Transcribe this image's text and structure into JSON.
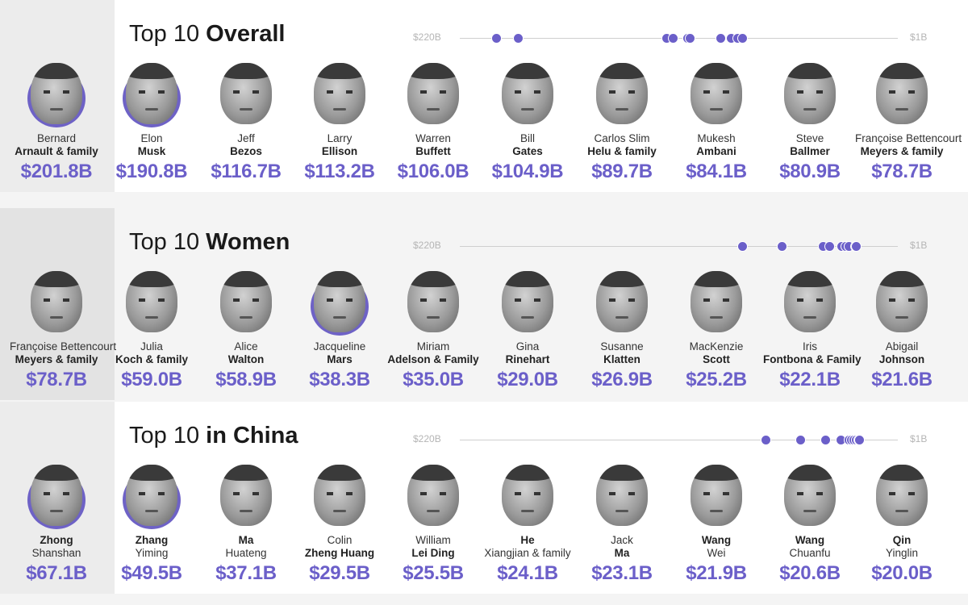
{
  "colors": {
    "accent": "#6b5fc9",
    "ring": "#6e62c6"
  },
  "scale_labels": {
    "high": "$220B",
    "low": "$1B"
  },
  "sections": [
    {
      "title_light": "Top 10 ",
      "title_bold": "Overall",
      "lead": {
        "line1": "Bernard",
        "line2": "Arnault & family",
        "worth": "$201.8B",
        "line1_bold": false
      },
      "people": [
        {
          "line1": "Elon",
          "line2": "Musk",
          "worth": "$190.8B",
          "line1_bold": false
        },
        {
          "line1": "Jeff",
          "line2": "Bezos",
          "worth": "$116.7B",
          "line1_bold": false
        },
        {
          "line1": "Larry",
          "line2": "Ellison",
          "worth": "$113.2B",
          "line1_bold": false
        },
        {
          "line1": "Warren",
          "line2": "Buffett",
          "worth": "$106.0B",
          "line1_bold": false
        },
        {
          "line1": "Bill",
          "line2": "Gates",
          "worth": "$104.9B",
          "line1_bold": false
        },
        {
          "line1": "Carlos Slim",
          "line2": "Helu & family",
          "worth": "$89.7B",
          "line1_bold": false
        },
        {
          "line1": "Mukesh",
          "line2": "Ambani",
          "worth": "$84.1B",
          "line1_bold": false
        },
        {
          "line1": "Steve",
          "line2": "Ballmer",
          "worth": "$80.9B",
          "line1_bold": false
        },
        {
          "line1": "Françoise Bettencourt",
          "line2": "Meyers & family",
          "worth": "$78.7B",
          "line1_bold": false
        }
      ],
      "dots": [
        201.8,
        190.8,
        116.7,
        113.2,
        106.0,
        104.9,
        89.7,
        84.1,
        80.9,
        78.7
      ]
    },
    {
      "title_light": "Top 10 ",
      "title_bold": "Women",
      "lead": {
        "line1": "Françoise Bettencourt",
        "line2": "Meyers & family",
        "worth": "$78.7B",
        "line1_bold": false
      },
      "people": [
        {
          "line1": "Julia",
          "line2": "Koch & family",
          "worth": "$59.0B",
          "line1_bold": false
        },
        {
          "line1": "Alice",
          "line2": "Walton",
          "worth": "$58.9B",
          "line1_bold": false
        },
        {
          "line1": "Jacqueline",
          "line2": "Mars",
          "worth": "$38.3B",
          "line1_bold": false
        },
        {
          "line1": "Miriam",
          "line2": "Adelson & Family",
          "worth": "$35.0B",
          "line1_bold": false
        },
        {
          "line1": "Gina",
          "line2": "Rinehart",
          "worth": "$29.0B",
          "line1_bold": false
        },
        {
          "line1": "Susanne",
          "line2": "Klatten",
          "worth": "$26.9B",
          "line1_bold": false
        },
        {
          "line1": "MacKenzie",
          "line2": "Scott",
          "worth": "$25.2B",
          "line1_bold": false
        },
        {
          "line1": "Iris",
          "line2": "Fontbona & Family",
          "worth": "$22.1B",
          "line1_bold": false
        },
        {
          "line1": "Abigail",
          "line2": "Johnson",
          "worth": "$21.6B",
          "line1_bold": false
        }
      ],
      "dots": [
        78.7,
        59.0,
        58.9,
        38.3,
        35.0,
        29.0,
        26.9,
        25.2,
        22.1,
        21.6
      ]
    },
    {
      "title_light": "Top 10 ",
      "title_bold": "in China",
      "lead": {
        "line1": "Zhong",
        "line2": "Shanshan",
        "worth": "$67.1B",
        "line1_bold": true
      },
      "people": [
        {
          "line1": "Zhang",
          "line2": "Yiming",
          "worth": "$49.5B",
          "line1_bold": true
        },
        {
          "line1": "Ma",
          "line2": "Huateng",
          "worth": "$37.1B",
          "line1_bold": true
        },
        {
          "line1": "Colin",
          "line2": "Zheng Huang",
          "worth": "$29.5B",
          "line1_bold": false
        },
        {
          "line1": "William",
          "line2": "Lei Ding",
          "worth": "$25.5B",
          "line1_bold": false
        },
        {
          "line1": "He",
          "line2": "Xiangjian & family",
          "worth": "$24.1B",
          "line1_bold": true
        },
        {
          "line1": "Jack",
          "line2": "Ma",
          "worth": "$23.1B",
          "line1_bold": false
        },
        {
          "line1": "Wang",
          "line2": "Wei",
          "worth": "$21.9B",
          "line1_bold": true
        },
        {
          "line1": "Wang",
          "line2": "Chuanfu",
          "worth": "$20.6B",
          "line1_bold": true
        },
        {
          "line1": "Qin",
          "line2": "Yinglin",
          "worth": "$20.0B",
          "line1_bold": true
        }
      ],
      "dots": [
        67.1,
        49.5,
        37.1,
        29.5,
        25.5,
        24.1,
        23.1,
        21.9,
        20.6,
        20.0
      ]
    }
  ]
}
